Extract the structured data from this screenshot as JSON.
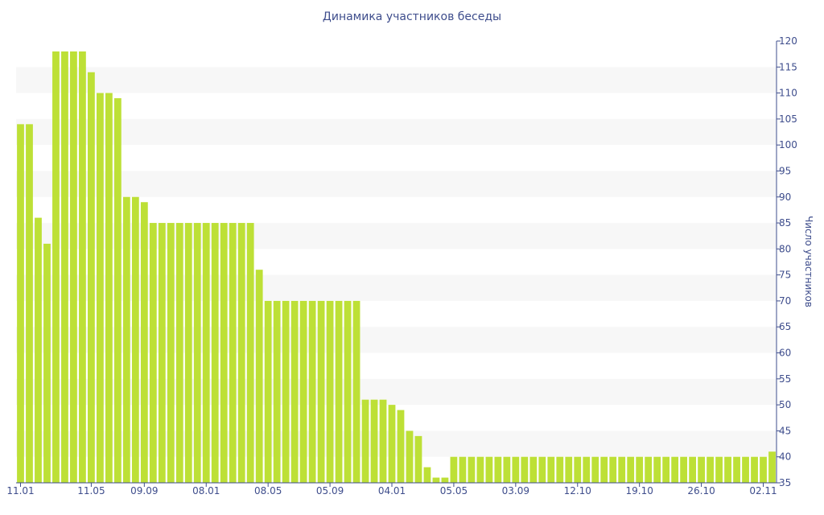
{
  "chart_data": {
    "type": "bar",
    "title": "Динамика участников беседы",
    "xlabel": "",
    "ylabel": "Число участников",
    "ylim": [
      35,
      120
    ],
    "y_ticks": [
      35,
      40,
      45,
      50,
      55,
      60,
      65,
      70,
      75,
      80,
      85,
      90,
      95,
      100,
      105,
      110,
      115,
      120
    ],
    "y_axis_side": "right",
    "x_tick_labels": [
      {
        "index": 0,
        "label": "11.01"
      },
      {
        "index": 8,
        "label": "11.05"
      },
      {
        "index": 14,
        "label": "09.09"
      },
      {
        "index": 21,
        "label": "08.01"
      },
      {
        "index": 28,
        "label": "08.05"
      },
      {
        "index": 35,
        "label": "05.09"
      },
      {
        "index": 42,
        "label": "04.01"
      },
      {
        "index": 49,
        "label": "05.05"
      },
      {
        "index": 56,
        "label": "03.09"
      },
      {
        "index": 63,
        "label": "12.10"
      },
      {
        "index": 70,
        "label": "19.10"
      },
      {
        "index": 77,
        "label": "26.10"
      },
      {
        "index": 84,
        "label": "02.11"
      }
    ],
    "values": [
      104,
      104,
      86,
      81,
      118,
      118,
      118,
      118,
      114,
      110,
      110,
      109,
      90,
      90,
      89,
      85,
      85,
      85,
      85,
      85,
      85,
      85,
      85,
      85,
      85,
      85,
      85,
      76,
      70,
      70,
      70,
      70,
      70,
      70,
      70,
      70,
      70,
      70,
      70,
      51,
      51,
      51,
      50,
      49,
      45,
      44,
      38,
      36,
      36,
      40,
      40,
      40,
      40,
      40,
      40,
      40,
      40,
      40,
      40,
      40,
      40,
      40,
      40,
      40,
      40,
      40,
      40,
      40,
      40,
      40,
      40,
      40,
      40,
      40,
      40,
      40,
      40,
      40,
      40,
      40,
      40,
      40,
      40,
      40,
      40,
      41
    ],
    "grid": "alternating horizontal bands",
    "colors": {
      "bar": "#bde036",
      "band": "#f7f7f7",
      "text": "#3e4d8c",
      "axis": "#3e4d8c"
    }
  }
}
